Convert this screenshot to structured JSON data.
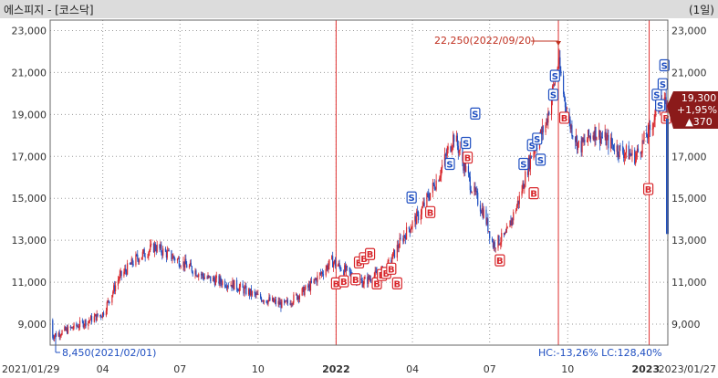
{
  "header": {
    "title": "에스피지 - [코스닥]",
    "period": "(1일)"
  },
  "colors": {
    "up": "#d8262b",
    "down": "#1f4fc1",
    "marker_line": "#e03030",
    "price_box": "#8b1a1a"
  },
  "chart_data": {
    "type": "candlestick",
    "x_range": [
      "2021-01-29",
      "2023-01-27"
    ],
    "x_ticks": [
      "2021/01/29",
      "04",
      "07",
      "10",
      "2022",
      "04",
      "07",
      "10",
      "2023",
      "2023/01/27"
    ],
    "y_ticks": [
      "23,000",
      "21,000",
      "19,000",
      "17,000",
      "15,000",
      "13,000",
      "11,000",
      "9,000"
    ],
    "ylim": [
      8000,
      23500
    ],
    "grid": "dotted",
    "series_close_approx": [
      [
        "2021-01-29",
        9200
      ],
      [
        "2021-02-01",
        8450
      ],
      [
        "2021-03-01",
        8900
      ],
      [
        "2021-04-01",
        9500
      ],
      [
        "2021-04-20",
        11200
      ],
      [
        "2021-05-10",
        12100
      ],
      [
        "2021-06-01",
        12700
      ],
      [
        "2021-07-01",
        12000
      ],
      [
        "2021-08-01",
        11200
      ],
      [
        "2021-09-01",
        10900
      ],
      [
        "2021-10-01",
        10300
      ],
      [
        "2021-11-01",
        9900
      ],
      [
        "2021-12-01",
        10800
      ],
      [
        "2021-12-27",
        12000
      ],
      [
        "2022-01-10",
        11600
      ],
      [
        "2022-02-01",
        11000
      ],
      [
        "2022-03-01",
        11600
      ],
      [
        "2022-03-20",
        13100
      ],
      [
        "2022-04-10",
        14300
      ],
      [
        "2022-05-01",
        16000
      ],
      [
        "2022-05-20",
        18000
      ],
      [
        "2022-06-10",
        15500
      ],
      [
        "2022-06-25",
        14200
      ],
      [
        "2022-07-05",
        12800
      ],
      [
        "2022-07-20",
        13200
      ],
      [
        "2022-08-05",
        15000
      ],
      [
        "2022-08-20",
        17200
      ],
      [
        "2022-09-05",
        18500
      ],
      [
        "2022-09-20",
        21500
      ],
      [
        "2022-10-01",
        18800
      ],
      [
        "2022-10-15",
        17400
      ],
      [
        "2022-11-01",
        18200
      ],
      [
        "2022-12-01",
        17300
      ],
      [
        "2022-12-20",
        17000
      ],
      [
        "2023-01-05",
        18200
      ],
      [
        "2023-01-18",
        19600
      ],
      [
        "2023-01-27",
        19300
      ]
    ],
    "annotations": {
      "high": "22,250(2022/09/20)",
      "low": "8,450(2021/02/01)",
      "hc_lc": "HC:-13,26%  LC:128,40%"
    },
    "signals": {
      "buy": [
        [
          "2022-01-01",
          10900
        ],
        [
          "2022-01-10",
          11000
        ],
        [
          "2022-01-24",
          11100
        ],
        [
          "2022-01-28",
          11900
        ],
        [
          "2022-02-03",
          12100
        ],
        [
          "2022-02-10",
          12300
        ],
        [
          "2022-02-18",
          10900
        ],
        [
          "2022-02-24",
          11300
        ],
        [
          "2022-03-01",
          11400
        ],
        [
          "2022-03-07",
          11600
        ],
        [
          "2022-03-14",
          10900
        ],
        [
          "2022-04-22",
          14300
        ],
        [
          "2022-06-05",
          16900
        ],
        [
          "2022-07-13",
          12000
        ],
        [
          "2022-08-22",
          15200
        ],
        [
          "2022-09-27",
          18800
        ],
        [
          "2023-01-04",
          15400
        ],
        [
          "2023-01-25",
          18800
        ]
      ],
      "sell": [
        [
          "2022-03-31",
          15000
        ],
        [
          "2022-05-15",
          16600
        ],
        [
          "2022-06-03",
          17600
        ],
        [
          "2022-06-14",
          19000
        ],
        [
          "2022-08-10",
          16600
        ],
        [
          "2022-08-20",
          17500
        ],
        [
          "2022-08-26",
          17800
        ],
        [
          "2022-08-30",
          16800
        ],
        [
          "2022-09-14",
          19900
        ],
        [
          "2022-09-16",
          20800
        ],
        [
          "2023-01-14",
          19900
        ],
        [
          "2023-01-18",
          19400
        ],
        [
          "2023-01-21",
          20400
        ],
        [
          "2023-01-23",
          21300
        ]
      ]
    },
    "event_dates": [
      "2022-01-01",
      "2022-09-20",
      "2023-01-05"
    ]
  },
  "price_box": {
    "price": "19,300",
    "pct": "+1,95%",
    "change": "▲370"
  }
}
